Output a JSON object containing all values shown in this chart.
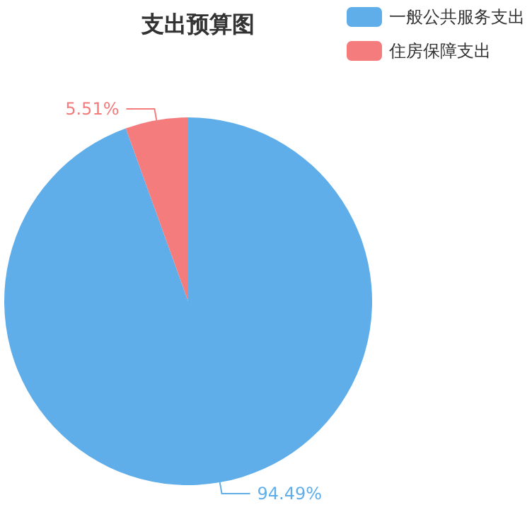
{
  "chart_data": {
    "type": "pie",
    "title": "支出预算图",
    "categories": [
      "一般公共服务支出",
      "住房保障支出"
    ],
    "values": [
      94.49,
      5.51
    ],
    "colors": [
      "#5faeea",
      "#f47c7c"
    ],
    "legend": "top right",
    "value_labels": [
      "94.49%",
      "5.51%"
    ]
  }
}
